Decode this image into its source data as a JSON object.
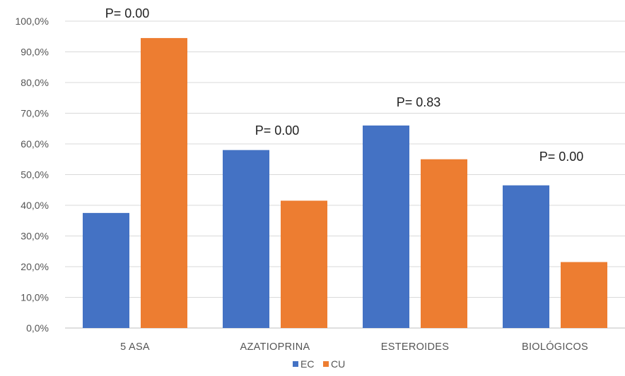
{
  "chart_data": {
    "type": "bar",
    "categories": [
      "5 ASA",
      "AZATIOPRINA",
      "ESTEROIDES",
      "BIOLÓGICOS"
    ],
    "series": [
      {
        "name": "EC",
        "color": "#4472c4",
        "values": [
          37.5,
          58.0,
          66.0,
          46.5
        ]
      },
      {
        "name": "CU",
        "color": "#ed7d31",
        "values": [
          94.5,
          41.5,
          55.0,
          21.5
        ]
      }
    ],
    "ylim": [
      0,
      100
    ],
    "yticks": [
      0,
      10,
      20,
      30,
      40,
      50,
      60,
      70,
      80,
      90,
      100
    ],
    "ytick_labels": [
      "0,0%",
      "10,0%",
      "20,0%",
      "30,0%",
      "40,0%",
      "50,0%",
      "60,0%",
      "70,0%",
      "80,0%",
      "90,0%",
      "100,0%"
    ],
    "annotations": [
      "P= 0.00",
      "P= 0.00",
      "P= 0.83",
      "P= 0.00"
    ],
    "grid": true,
    "legend_position": "bottom"
  }
}
